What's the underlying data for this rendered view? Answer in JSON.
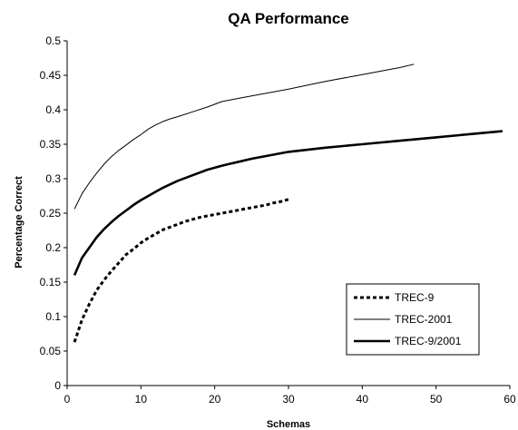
{
  "chart_data": {
    "type": "line",
    "title": "QA Performance",
    "xlabel": "Schemas",
    "ylabel": "Percentage Correct",
    "xlim": [
      0,
      60
    ],
    "ylim": [
      0,
      0.5
    ],
    "xticks": [
      0,
      10,
      20,
      30,
      40,
      50,
      60
    ],
    "yticks": [
      0,
      0.05,
      0.1,
      0.15,
      0.2,
      0.25,
      0.3,
      0.35,
      0.4,
      0.45,
      0.5
    ],
    "xtick_labels": [
      "0",
      "10",
      "20",
      "30",
      "40",
      "50",
      "60"
    ],
    "ytick_labels": [
      "0",
      "0.05",
      "0.1",
      "0.15",
      "0.2",
      "0.25",
      "0.3",
      "0.35",
      "0.4",
      "0.45",
      "0.5"
    ],
    "grid": false,
    "legend_position": "bottom-right",
    "series": [
      {
        "name": "TREC-9",
        "style": "dotted",
        "color": "#000000",
        "points": [
          [
            1,
            0.063
          ],
          [
            2,
            0.095
          ],
          [
            3,
            0.118
          ],
          [
            4,
            0.138
          ],
          [
            5,
            0.153
          ],
          [
            6,
            0.166
          ],
          [
            7,
            0.178
          ],
          [
            8,
            0.19
          ],
          [
            9,
            0.198
          ],
          [
            10,
            0.207
          ],
          [
            11,
            0.214
          ],
          [
            12,
            0.22
          ],
          [
            13,
            0.226
          ],
          [
            14,
            0.23
          ],
          [
            15,
            0.234
          ],
          [
            16,
            0.238
          ],
          [
            17,
            0.241
          ],
          [
            18,
            0.244
          ],
          [
            19,
            0.246
          ],
          [
            20,
            0.248
          ],
          [
            21,
            0.25
          ],
          [
            22,
            0.252
          ],
          [
            23,
            0.254
          ],
          [
            24,
            0.256
          ],
          [
            25,
            0.258
          ],
          [
            26,
            0.26
          ],
          [
            27,
            0.262
          ],
          [
            28,
            0.265
          ],
          [
            29,
            0.267
          ],
          [
            30,
            0.27
          ]
        ]
      },
      {
        "name": "TREC-2001",
        "style": "thin",
        "color": "#000000",
        "points": [
          [
            1,
            0.256
          ],
          [
            2,
            0.278
          ],
          [
            3,
            0.294
          ],
          [
            4,
            0.308
          ],
          [
            5,
            0.321
          ],
          [
            6,
            0.332
          ],
          [
            7,
            0.341
          ],
          [
            8,
            0.349
          ],
          [
            9,
            0.357
          ],
          [
            10,
            0.364
          ],
          [
            11,
            0.372
          ],
          [
            12,
            0.378
          ],
          [
            13,
            0.383
          ],
          [
            14,
            0.387
          ],
          [
            15,
            0.39
          ],
          [
            17,
            0.397
          ],
          [
            19,
            0.404
          ],
          [
            21,
            0.412
          ],
          [
            23,
            0.416
          ],
          [
            25,
            0.42
          ],
          [
            30,
            0.43
          ],
          [
            35,
            0.441
          ],
          [
            40,
            0.451
          ],
          [
            45,
            0.461
          ],
          [
            47,
            0.466
          ]
        ]
      },
      {
        "name": "TREC-9/2001",
        "style": "thick",
        "color": "#000000",
        "points": [
          [
            1,
            0.16
          ],
          [
            2,
            0.185
          ],
          [
            3,
            0.2
          ],
          [
            4,
            0.215
          ],
          [
            5,
            0.227
          ],
          [
            6,
            0.237
          ],
          [
            7,
            0.246
          ],
          [
            8,
            0.254
          ],
          [
            9,
            0.262
          ],
          [
            10,
            0.269
          ],
          [
            11,
            0.275
          ],
          [
            12,
            0.281
          ],
          [
            13,
            0.287
          ],
          [
            14,
            0.292
          ],
          [
            15,
            0.297
          ],
          [
            17,
            0.305
          ],
          [
            19,
            0.313
          ],
          [
            21,
            0.319
          ],
          [
            23,
            0.324
          ],
          [
            25,
            0.329
          ],
          [
            30,
            0.339
          ],
          [
            35,
            0.345
          ],
          [
            40,
            0.35
          ],
          [
            45,
            0.355
          ],
          [
            50,
            0.36
          ],
          [
            55,
            0.365
          ],
          [
            59,
            0.369
          ]
        ]
      }
    ]
  }
}
